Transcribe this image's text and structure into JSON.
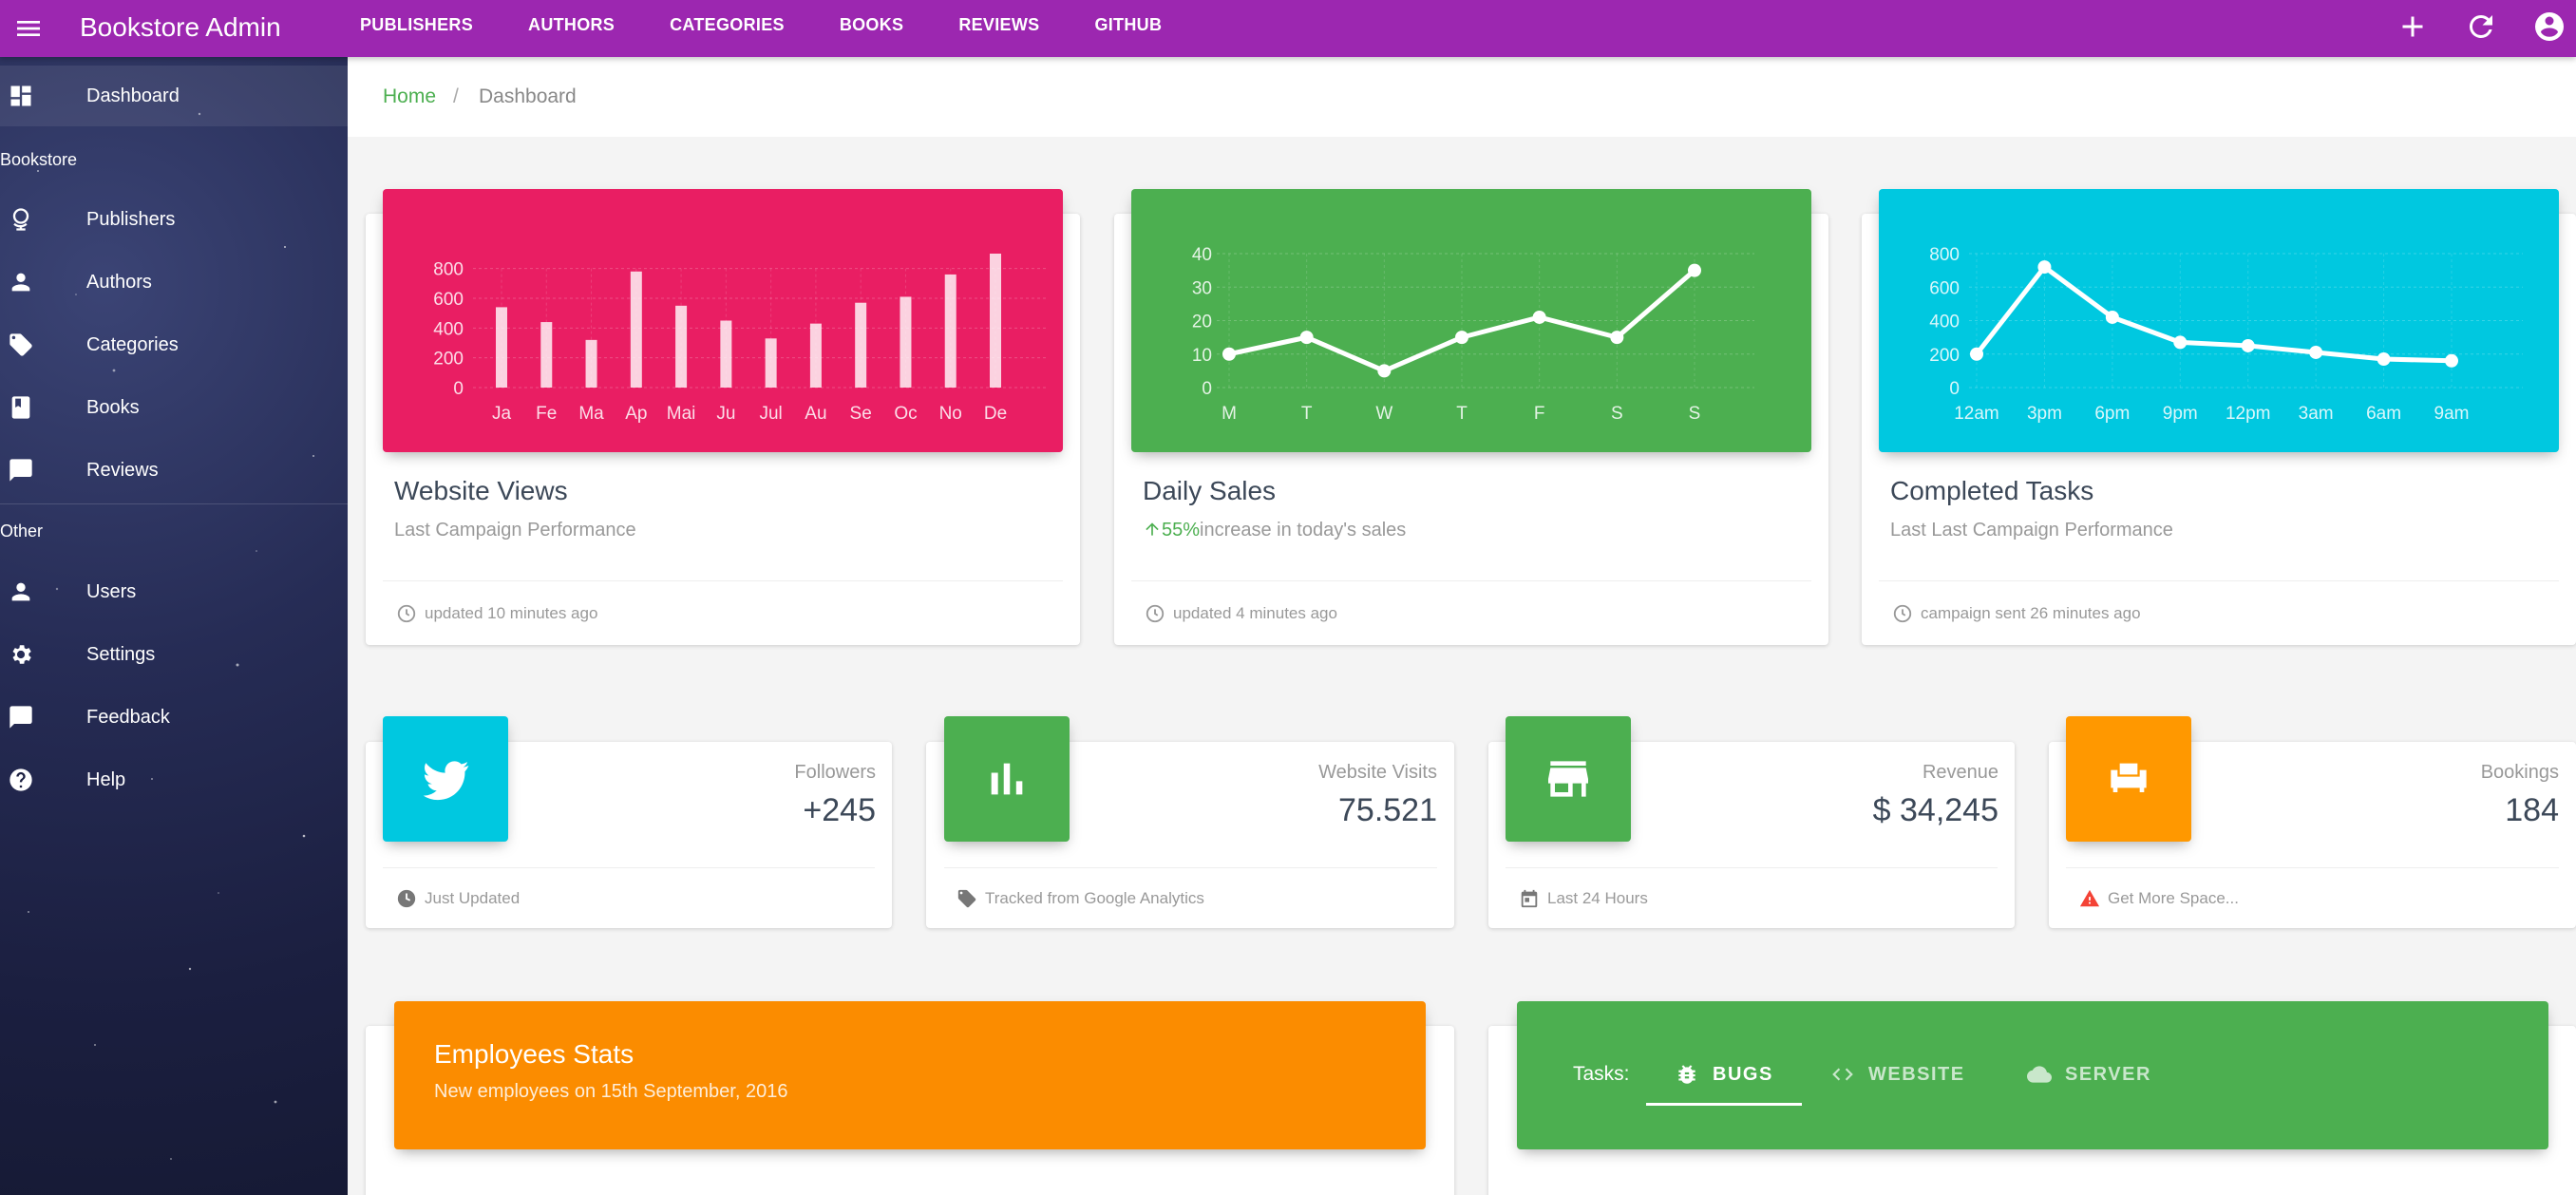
{
  "app": {
    "title": "Bookstore Admin",
    "accent": "#9c27b0",
    "nav": [
      "PUBLISHERS",
      "AUTHORS",
      "CATEGORIES",
      "BOOKS",
      "REVIEWS",
      "GITHUB"
    ],
    "actions": [
      "plus-icon",
      "refresh-icon",
      "account-circle-icon"
    ]
  },
  "sidebar": {
    "dashboard": "Dashboard",
    "group_bookstore": "Bookstore",
    "bookstore_items": [
      "Publishers",
      "Authors",
      "Categories",
      "Books",
      "Reviews"
    ],
    "group_other": "Other",
    "other_items": [
      "Users",
      "Settings",
      "Feedback",
      "Help"
    ]
  },
  "breadcrumb": {
    "home": "Home",
    "separator": "/",
    "current": "Dashboard"
  },
  "cards": [
    {
      "title": "Website Views",
      "subtitle": "Last Campaign Performance",
      "footer": "updated 10 minutes ago",
      "color": "#e91e63"
    },
    {
      "title": "Daily Sales",
      "subtitle_percent": "55%",
      "subtitle_rest": "increase in today's sales",
      "footer": "updated 4 minutes ago",
      "color": "#4caf50"
    },
    {
      "title": "Completed Tasks",
      "subtitle": "Last Last Campaign Performance",
      "footer": "campaign sent 26 minutes ago",
      "color": "#00c8e0"
    }
  ],
  "chart_data": [
    {
      "type": "bar",
      "categories": [
        "Ja",
        "Fe",
        "Ma",
        "Ap",
        "Mai",
        "Ju",
        "Jul",
        "Au",
        "Se",
        "Oc",
        "No",
        "De"
      ],
      "values": [
        540,
        440,
        320,
        780,
        550,
        450,
        330,
        430,
        570,
        610,
        760,
        900
      ],
      "yticks": [
        0,
        200,
        400,
        600,
        800
      ],
      "ylim": [
        0,
        900
      ],
      "grid": true
    },
    {
      "type": "line",
      "categories": [
        "M",
        "T",
        "W",
        "T",
        "F",
        "S",
        "S"
      ],
      "values": [
        10,
        15,
        5,
        15,
        21,
        15,
        35
      ],
      "yticks": [
        0,
        10,
        20,
        30,
        40
      ],
      "ylim": [
        0,
        40
      ],
      "grid": true
    },
    {
      "type": "line",
      "categories": [
        "12am",
        "3pm",
        "6pm",
        "9pm",
        "12pm",
        "3am",
        "6am",
        "9am"
      ],
      "values": [
        200,
        720,
        420,
        270,
        250,
        210,
        170,
        160
      ],
      "yticks": [
        0,
        200,
        400,
        600,
        800
      ],
      "ylim": [
        0,
        800
      ],
      "grid": true
    }
  ],
  "stats": [
    {
      "label": "Followers",
      "value": "+245",
      "footer": "Just Updated",
      "color": "#00c8e0",
      "icon": "twitter-icon",
      "footer_icon": "clock-icon"
    },
    {
      "label": "Website Visits",
      "value": "75.521",
      "footer": "Tracked from Google Analytics",
      "color": "#4caf50",
      "icon": "bar-chart-icon",
      "footer_icon": "tag-icon"
    },
    {
      "label": "Revenue",
      "value": "$ 34,245",
      "footer": "Last 24 Hours",
      "color": "#4caf50",
      "icon": "store-icon",
      "footer_icon": "calendar-icon"
    },
    {
      "label": "Bookings",
      "value": "184",
      "footer": "Get More Space...",
      "color": "#ff9800",
      "icon": "sofa-icon",
      "footer_icon": "warning-icon"
    }
  ],
  "employees": {
    "title": "Employees Stats",
    "subtitle": "New employees on 15th September, 2016",
    "color": "#fb8c00"
  },
  "tasks": {
    "label": "Tasks:",
    "tabs": [
      {
        "label": "BUGS",
        "icon": "bug-icon",
        "active": true
      },
      {
        "label": "WEBSITE",
        "icon": "code-icon",
        "active": false
      },
      {
        "label": "SERVER",
        "icon": "cloud-icon",
        "active": false
      }
    ]
  }
}
